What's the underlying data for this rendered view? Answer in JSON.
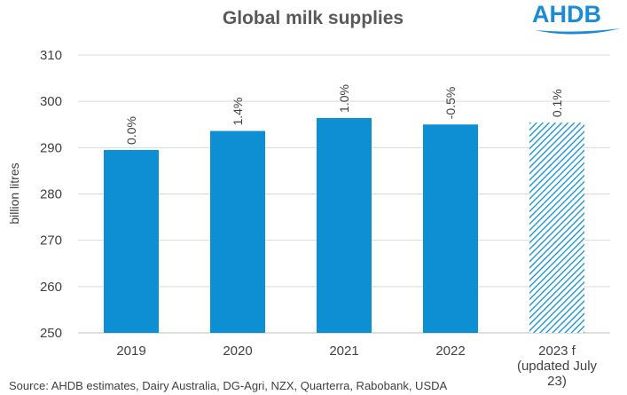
{
  "chart_data": {
    "type": "bar",
    "title": "Global milk supplies",
    "ylabel": "billion litres",
    "ylim": [
      250,
      310
    ],
    "yticks": [
      250,
      260,
      270,
      280,
      290,
      300,
      310
    ],
    "grid": true,
    "categories": [
      "2019",
      "2020",
      "2021",
      "2022",
      "2023 f (updated July 23)"
    ],
    "category_lines": [
      [
        "2019"
      ],
      [
        "2020"
      ],
      [
        "2021"
      ],
      [
        "2022"
      ],
      [
        "2023 f",
        "(updated July",
        "23)"
      ]
    ],
    "values": [
      289.5,
      293.6,
      296.4,
      295.0,
      295.4
    ],
    "data_labels": [
      "0.0%",
      "1.4%",
      "1.0%",
      "-0.5%",
      "0.1%"
    ],
    "forecast": [
      false,
      false,
      false,
      false,
      true
    ],
    "source": "Source: AHDB estimates, Dairy Australia, DG-Agri, NZX, Quarterra, Rabobank, USDA",
    "colors": {
      "bar": "#0f8fd3",
      "grid": "#d9d9d9",
      "text": "#404040"
    }
  },
  "logo": {
    "text": "AHDB",
    "color": "#1a8bd6"
  }
}
